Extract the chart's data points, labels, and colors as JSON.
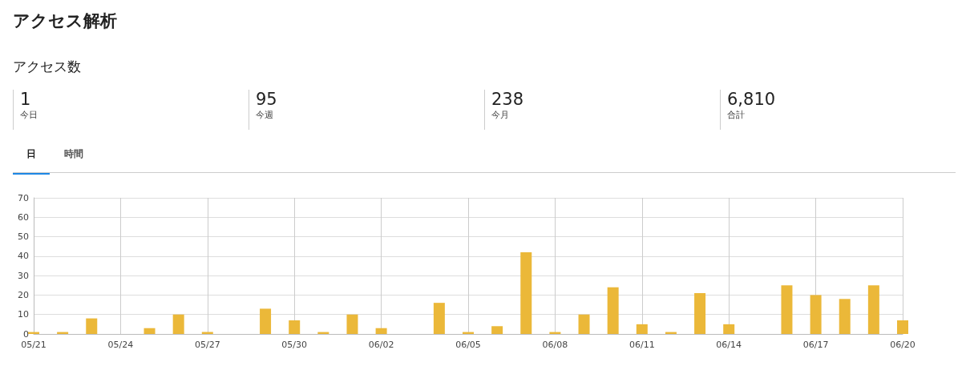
{
  "chart_data": {
    "type": "bar",
    "title": "アクセス解析",
    "subtitle": "アクセス数",
    "annotations": [
      "1",
      "今日",
      "95",
      "今週",
      "238",
      "今月",
      "6,810",
      "合計",
      "日",
      "時間"
    ],
    "categories": [
      "05/21",
      null,
      null,
      "05/24",
      null,
      null,
      "05/27",
      null,
      null,
      "05/30",
      null,
      null,
      "06/02",
      null,
      null,
      "06/05",
      null,
      null,
      "06/08",
      null,
      null,
      "06/11",
      null,
      null,
      "06/14",
      null,
      null,
      "06/17",
      null,
      null,
      "06/20"
    ],
    "values": [
      1,
      1,
      8,
      0,
      3,
      10,
      1,
      0,
      13,
      7,
      1,
      10,
      3,
      0,
      16,
      1,
      4,
      42,
      1,
      10,
      24,
      5,
      1,
      21,
      5,
      0,
      25,
      20,
      18,
      25,
      7
    ],
    "color": "#ebb839",
    "ylim": [
      0,
      70
    ],
    "yticks": [
      0,
      10,
      20,
      30,
      40,
      50,
      60,
      70
    ],
    "grid": true
  }
}
